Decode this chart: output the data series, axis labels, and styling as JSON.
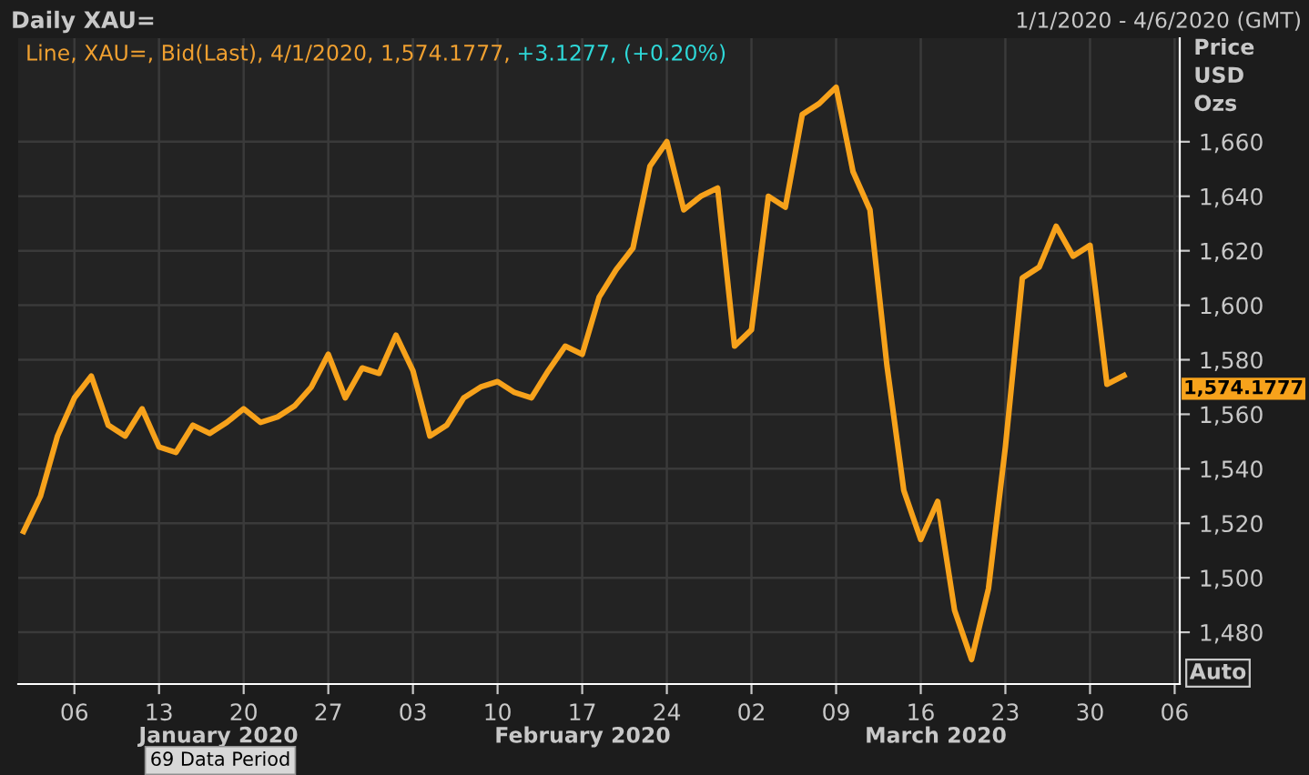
{
  "chart_data": {
    "type": "line",
    "title": "Daily XAU=",
    "subtitle": "Line, XAU=, Bid(Last), 4/1/2020, 1,574.1777,",
    "ylabel": "Price\nUSD\nOzs",
    "categories": [
      null,
      null,
      null,
      "06",
      null,
      null,
      null,
      null,
      "13",
      null,
      null,
      null,
      null,
      "20",
      null,
      null,
      null,
      null,
      "27",
      null,
      null,
      null,
      null,
      "03",
      null,
      null,
      null,
      null,
      "10",
      null,
      null,
      null,
      null,
      "17",
      null,
      null,
      null,
      null,
      "24",
      null,
      null,
      null,
      null,
      "02",
      null,
      null,
      null,
      null,
      "09",
      null,
      null,
      null,
      null,
      "16",
      null,
      null,
      null,
      null,
      "23",
      null,
      null,
      null,
      null,
      "30",
      null,
      null,
      null,
      null,
      "06"
    ],
    "series": [
      {
        "color": "#f7a21b",
        "values": [
          1517,
          1530,
          1552,
          1566,
          1574,
          1556,
          1552,
          1562,
          1548,
          1546,
          1556,
          1553,
          1557,
          1562,
          1557,
          1559,
          1563,
          1570,
          1582,
          1566,
          1577,
          1575,
          1589,
          1576,
          1552,
          1556,
          1566,
          1570,
          1572,
          1568,
          1566,
          1576,
          1585,
          1582,
          1603,
          1613,
          1621,
          1651,
          1660,
          1635,
          1640,
          1643,
          1585,
          1591,
          1640,
          1636,
          1670,
          1674,
          1680,
          1649,
          1635,
          1578,
          1532,
          1514,
          1528,
          1488,
          1470,
          1496,
          1548,
          1610,
          1614,
          1629,
          1618,
          1622,
          1571,
          1574.1777,
          null,
          null,
          null
        ]
      }
    ],
    "ylim": [
      1461,
      1698
    ],
    "yticks": [
      {
        "value": 1480,
        "label": "1,480"
      },
      {
        "value": 1500,
        "label": "1,500"
      },
      {
        "value": 1520,
        "label": "1,520"
      },
      {
        "value": 1540,
        "label": "1,540"
      },
      {
        "value": 1560,
        "label": "1,560"
      },
      {
        "value": 1580,
        "label": "1,580"
      },
      {
        "value": 1600,
        "label": "1,600"
      },
      {
        "value": 1620,
        "label": "1,620"
      },
      {
        "value": 1640,
        "label": "1,640"
      },
      {
        "value": 1660,
        "label": "1,660"
      }
    ],
    "grid": true,
    "legend": false,
    "marker": "none",
    "line_style": "solid",
    "annotations": [
      "+3.1277, (+0.20%)",
      "1/1/2020 - 4/6/2020 (GMT)",
      "January 2020",
      "February 2020",
      "March 2020",
      "69 Data Period",
      "Auto",
      "1,574.1777"
    ]
  }
}
